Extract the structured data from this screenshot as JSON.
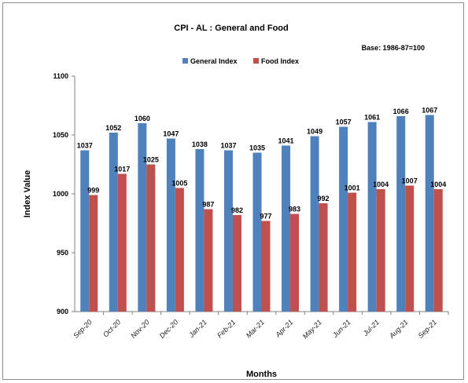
{
  "chart_data": {
    "type": "bar",
    "title": "CPI - AL : General and Food",
    "subtitle": "Base: 1986-87=100",
    "xlabel": "Months",
    "ylabel": "Index Value",
    "ylim": [
      900,
      1100
    ],
    "yticks": [
      "1100",
      "1050",
      "1000",
      "950",
      "900"
    ],
    "grid": false,
    "legend_position": "top",
    "categories": [
      "Sep-20",
      "Oct-20",
      "Nov-20",
      "Dec-20",
      "Jan-21",
      "Feb-21",
      "Mar-21",
      "Apr-21",
      "May-21",
      "Jun-21",
      "Jul-21",
      "Aug-21",
      "Sep-21"
    ],
    "series": [
      {
        "name": "General Index",
        "color": "#4f81bd",
        "values": [
          1037,
          1052,
          1060,
          1047,
          1038,
          1037,
          1035,
          1041,
          1049,
          1057,
          1061,
          1066,
          1067
        ]
      },
      {
        "name": "Food Index",
        "color": "#c0504d",
        "values": [
          999,
          1017,
          1025,
          1005,
          987,
          982,
          977,
          983,
          992,
          1001,
          1004,
          1007,
          1004
        ]
      }
    ]
  }
}
